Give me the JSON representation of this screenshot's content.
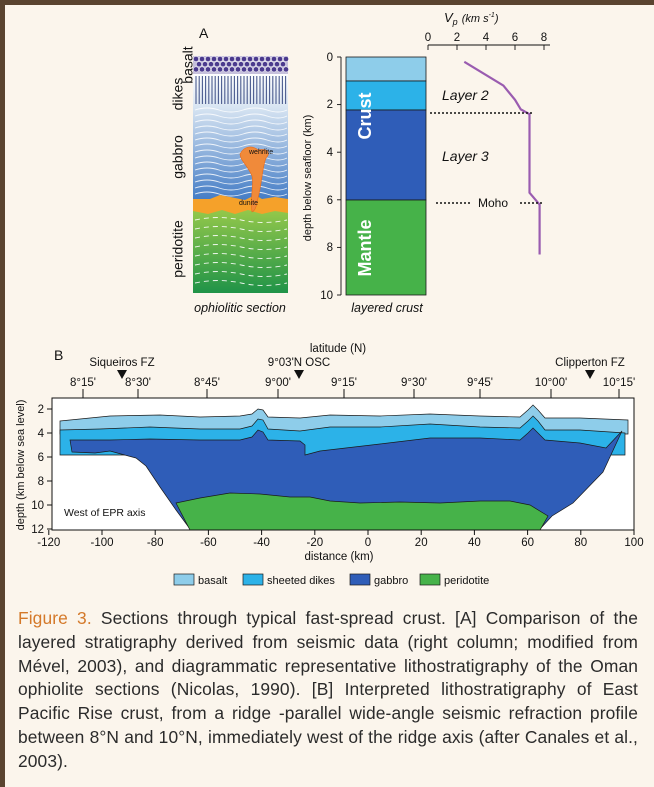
{
  "panel_a": {
    "label": "A",
    "ophiolite": {
      "units": [
        "basalt",
        "dikes",
        "gabbro",
        "peridotite"
      ],
      "inclusions": [
        "wehrlite",
        "dunite"
      ],
      "caption": "ophiolitic section"
    },
    "layered": {
      "ylabel": "depth below seafloor (km)",
      "ticks": [
        "0",
        "2",
        "4",
        "6",
        "8",
        "10"
      ],
      "crust_label": "Crust",
      "mantle_label": "Mantle",
      "caption": "layered crust",
      "layer2": "Layer 2",
      "layer3": "Layer 3",
      "moho": "Moho"
    },
    "vp": {
      "label": "V",
      "label_sub": "p",
      "unit": "(km s",
      "unit_sup": "-1",
      "unit_end": ")",
      "ticks": [
        "0",
        "2",
        "4",
        "6",
        "8"
      ]
    }
  },
  "chart_data": {
    "type": "line",
    "title": "V_p (km s-1)",
    "xlabel": "V_p (km s-1)",
    "ylabel": "depth below seafloor (km)",
    "xlim": [
      0,
      8
    ],
    "ylim": [
      10,
      0
    ],
    "series": [
      {
        "x": [
          2.5,
          5.2,
          6.0,
          6.4,
          7.0,
          7.0,
          7.7,
          7.7
        ],
        "y": [
          0.2,
          1.2,
          1.8,
          2.2,
          2.4,
          5.7,
          6.2,
          8.3
        ]
      }
    ]
  },
  "panel_b": {
    "label": "B",
    "lat_title": "latitude (N)",
    "lat_ticks": [
      "8°15'",
      "8°30'",
      "8°45'",
      "9°00'",
      "9°15'",
      "9°30'",
      "9°45'",
      "10°00'",
      "10°15'"
    ],
    "markers": [
      "Siqueiros FZ",
      "9°03'N OSC",
      "Clipperton FZ"
    ],
    "ylabel": "depth (km below sea level)",
    "yticks": [
      "2",
      "4",
      "6",
      "8",
      "10",
      "12"
    ],
    "xlabel": "distance (km)",
    "xticks": [
      "-120",
      "-100",
      "-80",
      "-60",
      "-40",
      "-20",
      "0",
      "20",
      "40",
      "60",
      "80",
      "100"
    ],
    "note": "West of EPR axis",
    "legend": [
      {
        "label": "basalt",
        "color": "#8ecdea"
      },
      {
        "label": "sheeted dikes",
        "color": "#2cb2e8"
      },
      {
        "label": "gabbro",
        "color": "#2f5db8"
      },
      {
        "label": "peridotite",
        "color": "#46b249"
      }
    ]
  },
  "caption": {
    "lead": "Figure 3.",
    "text": " Sections through typical fast-spread crust. [A] Comparison of the layered stratigraphy derived from seismic data (right column; modified from Mével, 2003), and diagrammatic representative lithostratigraphy of the Oman ophiolite sections (Nicolas, 1990). [B] Interpreted lithostratigraphy of East Pacific Rise crust, from a ridge -parallel wide-angle seismic refraction profile between 8°N and 10°N, immediately west of the ridge axis (after Canales et al., 2003)."
  }
}
